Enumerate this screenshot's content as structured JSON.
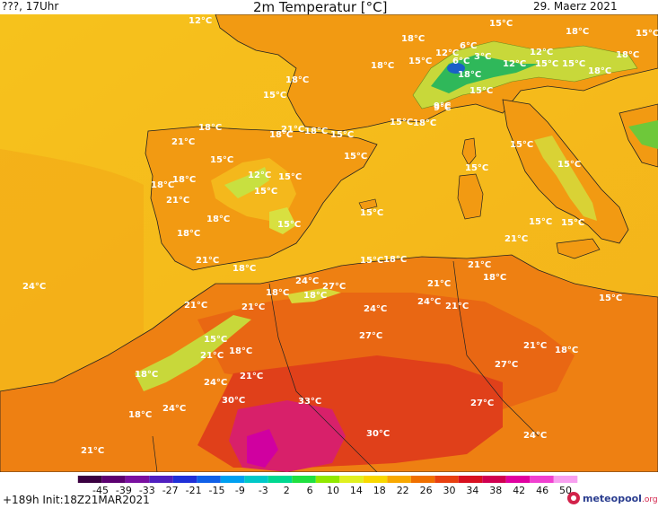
{
  "header": {
    "left": "???, 17Uhr",
    "title": "2m Temperatur [°C]",
    "date": "29. Maerz 2021"
  },
  "footer": {
    "run_info": "+189h Init:18Z21MAR2021",
    "logo_name": "meteopool",
    "logo_suffix": ".org"
  },
  "colorbar": {
    "ticks": [
      "-45",
      "-39",
      "-33",
      "-27",
      "-21",
      "-15",
      "-9",
      "-3",
      "2",
      "6",
      "10",
      "14",
      "18",
      "22",
      "26",
      "30",
      "34",
      "38",
      "42",
      "46",
      "50"
    ],
    "colors": [
      "#3a0040",
      "#5c0070",
      "#7a10a0",
      "#5020c0",
      "#2030d8",
      "#1060e8",
      "#00a0f0",
      "#00c8c8",
      "#00d890",
      "#20e040",
      "#90e800",
      "#e0f020",
      "#f8d800",
      "#f8a800",
      "#f07000",
      "#e84010",
      "#d81020",
      "#d00050",
      "#e000a0",
      "#f040d0",
      "#f8a0f0"
    ]
  },
  "labels": [
    {
      "t": "12°C"
    },
    {
      "t": "18°C"
    },
    {
      "t": "15°C"
    },
    {
      "t": "18°C"
    },
    {
      "t": "15°C"
    },
    {
      "t": "12°C"
    },
    {
      "t": "15°C"
    },
    {
      "t": "12°C"
    },
    {
      "t": "12°C"
    },
    {
      "t": "6°C"
    },
    {
      "t": "6°C"
    },
    {
      "t": "3°C"
    },
    {
      "t": "9°C"
    },
    {
      "t": "15°C"
    },
    {
      "t": "15°C"
    },
    {
      "t": "18°C"
    },
    {
      "t": "18°C"
    },
    {
      "t": "18°C"
    },
    {
      "t": "18°C"
    },
    {
      "t": "15°C"
    },
    {
      "t": "18°C"
    },
    {
      "t": "15°C"
    },
    {
      "t": "9°C"
    },
    {
      "t": "18°C"
    },
    {
      "t": "15°C"
    },
    {
      "t": "18°C"
    },
    {
      "t": "21°C"
    },
    {
      "t": "18°C"
    },
    {
      "t": "18°C"
    },
    {
      "t": "15°C"
    },
    {
      "t": "15°C"
    },
    {
      "t": "15°C"
    },
    {
      "t": "21°C"
    },
    {
      "t": "15°C"
    },
    {
      "t": "12°C"
    },
    {
      "t": "15°C"
    },
    {
      "t": "15°C"
    },
    {
      "t": "18°C"
    },
    {
      "t": "18°C"
    },
    {
      "t": "21°C"
    },
    {
      "t": "15°C"
    },
    {
      "t": "15°C"
    },
    {
      "t": "15°C"
    },
    {
      "t": "15°C"
    },
    {
      "t": "15°C"
    },
    {
      "t": "18°C"
    },
    {
      "t": "18°C"
    },
    {
      "t": "15°C"
    },
    {
      "t": "21°C"
    },
    {
      "t": "18°C"
    },
    {
      "t": "21°C"
    },
    {
      "t": "18°C"
    },
    {
      "t": "15°C"
    },
    {
      "t": "24°C"
    },
    {
      "t": "24°C"
    },
    {
      "t": "27°C"
    },
    {
      "t": "18°C"
    },
    {
      "t": "21°C"
    },
    {
      "t": "21°C"
    },
    {
      "t": "18°C"
    },
    {
      "t": "15°C"
    },
    {
      "t": "21°C"
    },
    {
      "t": "24°C"
    },
    {
      "t": "21°C"
    },
    {
      "t": "21°C"
    },
    {
      "t": "24°C"
    },
    {
      "t": "18°C"
    },
    {
      "t": "21°C"
    },
    {
      "t": "15°C"
    },
    {
      "t": "18°C"
    },
    {
      "t": "27°C"
    },
    {
      "t": "18°C"
    },
    {
      "t": "21°C"
    },
    {
      "t": "27°C"
    },
    {
      "t": "24°C"
    },
    {
      "t": "21°C"
    },
    {
      "t": "18°C"
    },
    {
      "t": "24°C"
    },
    {
      "t": "30°C"
    },
    {
      "t": "33°C"
    },
    {
      "t": "27°C"
    },
    {
      "t": "18°C"
    },
    {
      "t": "30°C"
    },
    {
      "t": "24°C"
    },
    {
      "t": "21°C"
    }
  ]
}
